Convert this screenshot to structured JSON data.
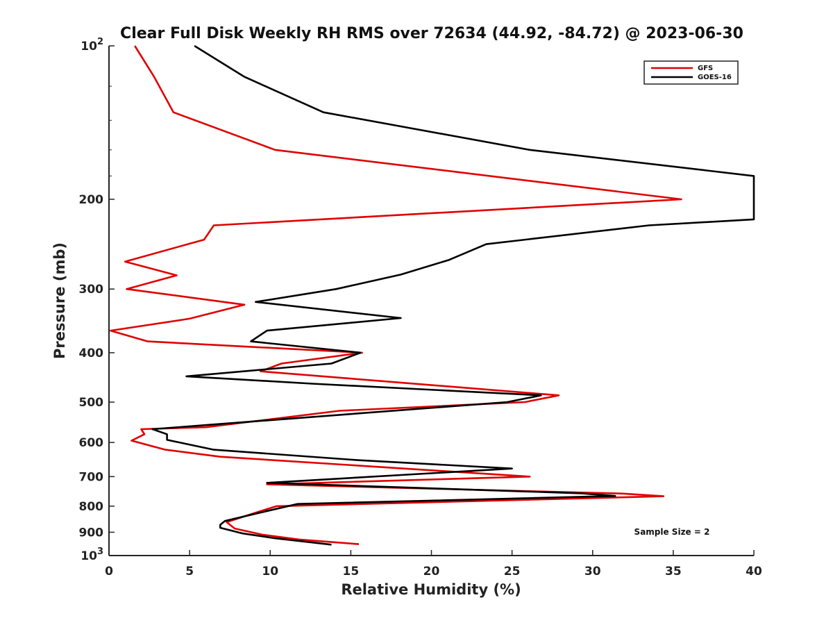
{
  "chart_data": {
    "type": "line",
    "title": "Clear Full Disk Weekly RH RMS over 72634 (44.92, -84.72) @ 2023-06-30",
    "xlabel": "Relative Humidity (%)",
    "ylabel": "Pressure (mb)",
    "xlim": [
      0,
      40
    ],
    "ylim": [
      100,
      1000
    ],
    "yscale": "log",
    "y_reversed": true,
    "xticks": [
      0,
      5,
      10,
      15,
      20,
      25,
      30,
      35,
      40
    ],
    "yticks": [
      {
        "value": 100,
        "label": "10",
        "sup": "2"
      },
      {
        "value": 200,
        "label": "200"
      },
      {
        "value": 300,
        "label": "300"
      },
      {
        "value": 400,
        "label": "400"
      },
      {
        "value": 500,
        "label": "500"
      },
      {
        "value": 600,
        "label": "600"
      },
      {
        "value": 700,
        "label": "700"
      },
      {
        "value": 800,
        "label": "800"
      },
      {
        "value": 900,
        "label": "900"
      },
      {
        "value": 1000,
        "label": "10",
        "sup": "3"
      }
    ],
    "legend_position": "top-right",
    "annotation": "Sample Size = 2",
    "series": [
      {
        "name": "GFS",
        "color": "#e00000",
        "points": [
          [
            1.6,
            100
          ],
          [
            2.8,
            115
          ],
          [
            4.0,
            135
          ],
          [
            10.3,
            160
          ],
          [
            35.5,
            200
          ],
          [
            6.5,
            225
          ],
          [
            5.9,
            240
          ],
          [
            1.0,
            265
          ],
          [
            4.2,
            282
          ],
          [
            1.1,
            300
          ],
          [
            8.4,
            322
          ],
          [
            5.0,
            343
          ],
          [
            0.1,
            362
          ],
          [
            2.4,
            380
          ],
          [
            15.7,
            400
          ],
          [
            10.7,
            420
          ],
          [
            9.4,
            435
          ],
          [
            27.9,
            485
          ],
          [
            25.8,
            500
          ],
          [
            14.3,
            520
          ],
          [
            6.0,
            560
          ],
          [
            2.0,
            565
          ],
          [
            2.2,
            578
          ],
          [
            1.4,
            595
          ],
          [
            3.5,
            620
          ],
          [
            6.9,
            640
          ],
          [
            26.1,
            700
          ],
          [
            9.8,
            725
          ],
          [
            31.9,
            756
          ],
          [
            34.4,
            765
          ],
          [
            10.4,
            800
          ],
          [
            9.3,
            820
          ],
          [
            7.3,
            860
          ],
          [
            7.8,
            885
          ],
          [
            9.5,
            910
          ],
          [
            11.8,
            930
          ],
          [
            15.5,
            950
          ]
        ]
      },
      {
        "name": "GOES-16",
        "color": "#000000",
        "points": [
          [
            5.3,
            100
          ],
          [
            8.4,
            115
          ],
          [
            13.3,
            135
          ],
          [
            26.1,
            160
          ],
          [
            40.0,
            180
          ],
          [
            40.0,
            219
          ],
          [
            33.5,
            225
          ],
          [
            23.4,
            245
          ],
          [
            21.1,
            263
          ],
          [
            18.1,
            281
          ],
          [
            14.1,
            300
          ],
          [
            9.1,
            318
          ],
          [
            18.1,
            342
          ],
          [
            9.8,
            362
          ],
          [
            8.8,
            380
          ],
          [
            15.6,
            400
          ],
          [
            13.8,
            420
          ],
          [
            4.8,
            445
          ],
          [
            12.6,
            460
          ],
          [
            26.8,
            485
          ],
          [
            24.7,
            500
          ],
          [
            5.9,
            555
          ],
          [
            2.7,
            565
          ],
          [
            3.6,
            578
          ],
          [
            3.6,
            593
          ],
          [
            6.5,
            620
          ],
          [
            15.5,
            650
          ],
          [
            25.0,
            675
          ],
          [
            9.8,
            720
          ],
          [
            29.3,
            755
          ],
          [
            31.4,
            764
          ],
          [
            11.7,
            792
          ],
          [
            10.0,
            815
          ],
          [
            7.2,
            855
          ],
          [
            6.9,
            870
          ],
          [
            6.9,
            882
          ],
          [
            8.3,
            905
          ],
          [
            10.3,
            925
          ],
          [
            13.8,
            952
          ]
        ]
      }
    ]
  }
}
